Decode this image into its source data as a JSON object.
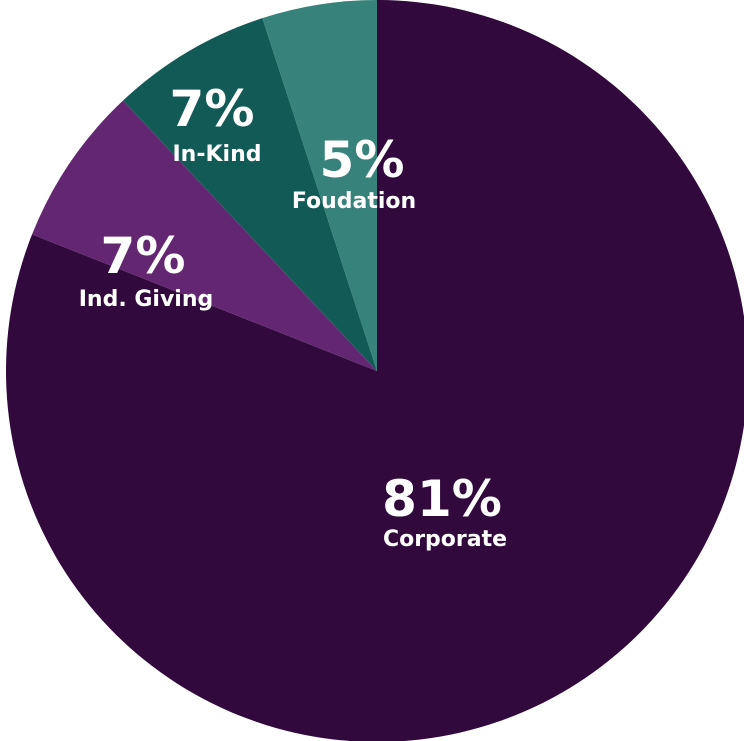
{
  "chart_data": {
    "type": "pie",
    "start": "12 o'clock",
    "direction": "clockwise",
    "slices": [
      {
        "label": "Corporate",
        "value": 81,
        "value_label": "81%",
        "color": "#31093d"
      },
      {
        "label": "Ind. Giving",
        "value": 7,
        "value_label": "7%",
        "color": "#632772"
      },
      {
        "label": "In-Kind",
        "value": 7,
        "value_label": "7%",
        "color": "#115a56"
      },
      {
        "label": "Foudation",
        "value": 5,
        "value_label": "5%",
        "color": "#37827a"
      }
    ]
  }
}
